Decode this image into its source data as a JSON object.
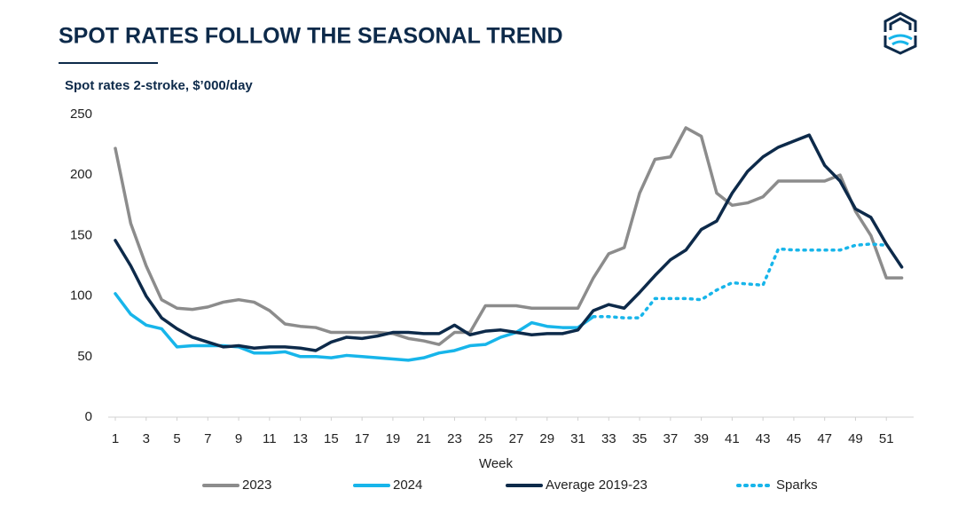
{
  "chart_data": {
    "type": "line",
    "title": "SPOT RATES FOLLOW THE SEASONAL TREND",
    "subtitle": "Spot rates 2-stroke, $’000/day",
    "x_label": "Week",
    "x": [
      1,
      2,
      3,
      4,
      5,
      6,
      7,
      8,
      9,
      10,
      11,
      12,
      13,
      14,
      15,
      16,
      17,
      18,
      19,
      20,
      21,
      22,
      23,
      24,
      25,
      26,
      27,
      28,
      29,
      30,
      31,
      32,
      33,
      34,
      35,
      36,
      37,
      38,
      39,
      40,
      41,
      42,
      43,
      44,
      45,
      46,
      47,
      48,
      49,
      50,
      51,
      52
    ],
    "xlim": [
      1,
      52
    ],
    "xticks": [
      1,
      3,
      5,
      7,
      9,
      11,
      13,
      15,
      17,
      19,
      21,
      23,
      25,
      27,
      29,
      31,
      33,
      35,
      37,
      39,
      41,
      43,
      45,
      47,
      49,
      51
    ],
    "ylim": [
      0,
      250
    ],
    "yticks": [
      0,
      50,
      100,
      150,
      200,
      250
    ],
    "grid": false,
    "legend": "bottom",
    "series": [
      {
        "name": "2023",
        "color": "#8c8c8c",
        "dash": "solid",
        "values": [
          222,
          160,
          125,
          97,
          90,
          89,
          91,
          95,
          97,
          95,
          88,
          77,
          75,
          74,
          70,
          70,
          70,
          70,
          69,
          65,
          63,
          60,
          70,
          70,
          92,
          92,
          92,
          90,
          90,
          90,
          90,
          115,
          135,
          140,
          185,
          213,
          215,
          239,
          232,
          185,
          175,
          177,
          182,
          195,
          195,
          195,
          195,
          200,
          170,
          150,
          115,
          115
        ]
      },
      {
        "name": "2024",
        "color": "#17b5ea",
        "dash": "solid",
        "values": [
          102,
          85,
          76,
          73,
          58,
          59,
          59,
          59,
          58,
          53,
          53,
          54,
          50,
          50,
          49,
          51,
          50,
          49,
          48,
          47,
          49,
          53,
          55,
          59,
          60,
          66,
          70,
          78,
          75,
          74,
          74,
          83,
          null,
          null,
          null,
          null,
          null,
          null,
          null,
          null,
          null,
          null,
          null,
          null,
          null,
          null,
          null,
          null,
          null,
          null,
          null,
          null
        ]
      },
      {
        "name": "Average 2019-23",
        "color": "#0d2a4a",
        "dash": "solid",
        "values": [
          146,
          125,
          100,
          82,
          73,
          66,
          62,
          58,
          59,
          57,
          58,
          58,
          57,
          55,
          62,
          66,
          65,
          67,
          70,
          70,
          69,
          69,
          76,
          68,
          71,
          72,
          70,
          68,
          69,
          69,
          72,
          88,
          93,
          90,
          103,
          117,
          130,
          138,
          155,
          162,
          185,
          203,
          215,
          223,
          228,
          233,
          208,
          195,
          172,
          165,
          143,
          124
        ]
      },
      {
        "name": "Sparks",
        "color": "#17b5ea",
        "dash": "dotted",
        "values": [
          null,
          null,
          null,
          null,
          null,
          null,
          null,
          null,
          null,
          null,
          null,
          null,
          null,
          null,
          null,
          null,
          null,
          null,
          null,
          null,
          null,
          null,
          null,
          null,
          null,
          null,
          null,
          null,
          null,
          null,
          null,
          83,
          83,
          82,
          82,
          98,
          98,
          98,
          97,
          105,
          111,
          110,
          109,
          139,
          138,
          138,
          138,
          138,
          142,
          143,
          142,
          null
        ]
      }
    ]
  }
}
